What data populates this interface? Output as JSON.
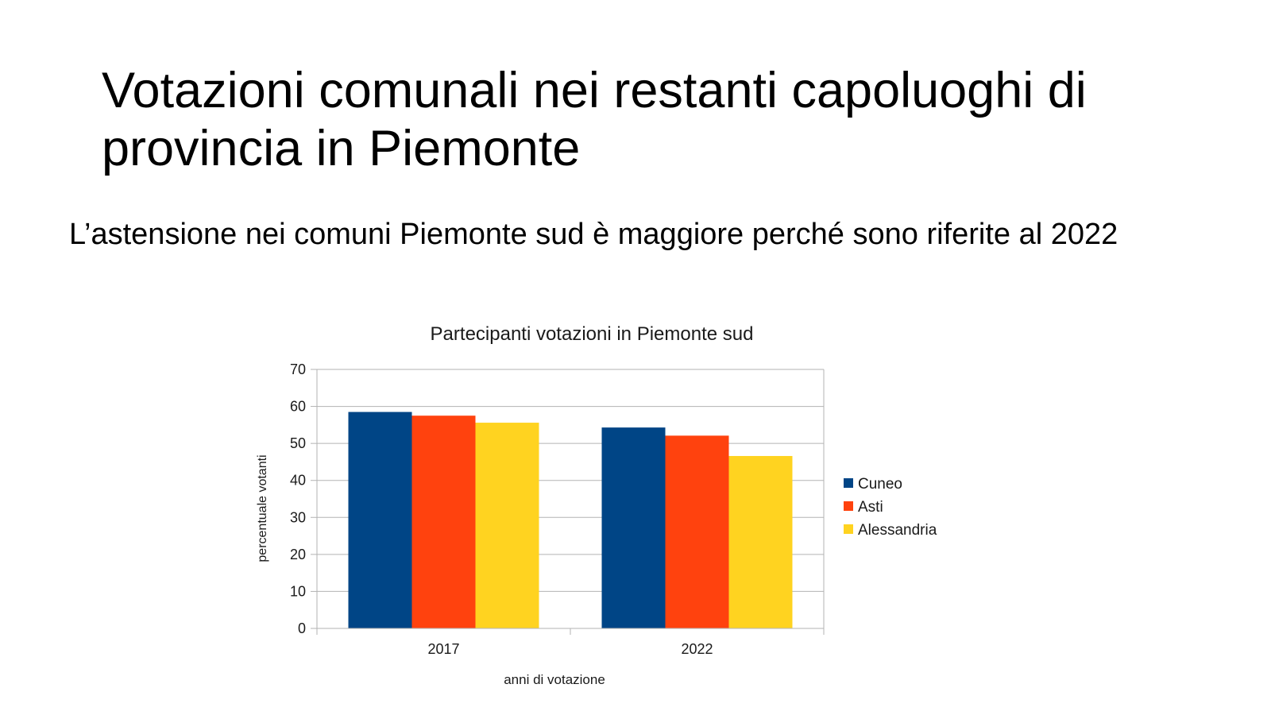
{
  "slide": {
    "title_lines": [
      "Votazioni comunali nei restanti capoluoghi di",
      "provincia in Piemonte"
    ],
    "subtitle": "L’astensione nei comuni Piemonte sud è maggiore perché sono riferite al 2022"
  },
  "chart_data": {
    "type": "bar",
    "title": "Partecipanti votazioni in Piemonte sud",
    "xlabel": "anni di votazione",
    "ylabel": "percentuale votanti",
    "categories": [
      "2017",
      "2022"
    ],
    "series": [
      {
        "name": "Cuneo",
        "values": [
          58.5,
          54.3
        ],
        "color": "#004586"
      },
      {
        "name": "Asti",
        "values": [
          57.5,
          52.1
        ],
        "color": "#ff420e"
      },
      {
        "name": "Alessandria",
        "values": [
          55.6,
          46.6
        ],
        "color": "#ffd320"
      }
    ],
    "ylim": [
      0,
      70
    ],
    "yticks": [
      "0",
      "10",
      "20",
      "30",
      "40",
      "50",
      "60",
      "70"
    ],
    "grid": true,
    "legend_position": "right"
  }
}
